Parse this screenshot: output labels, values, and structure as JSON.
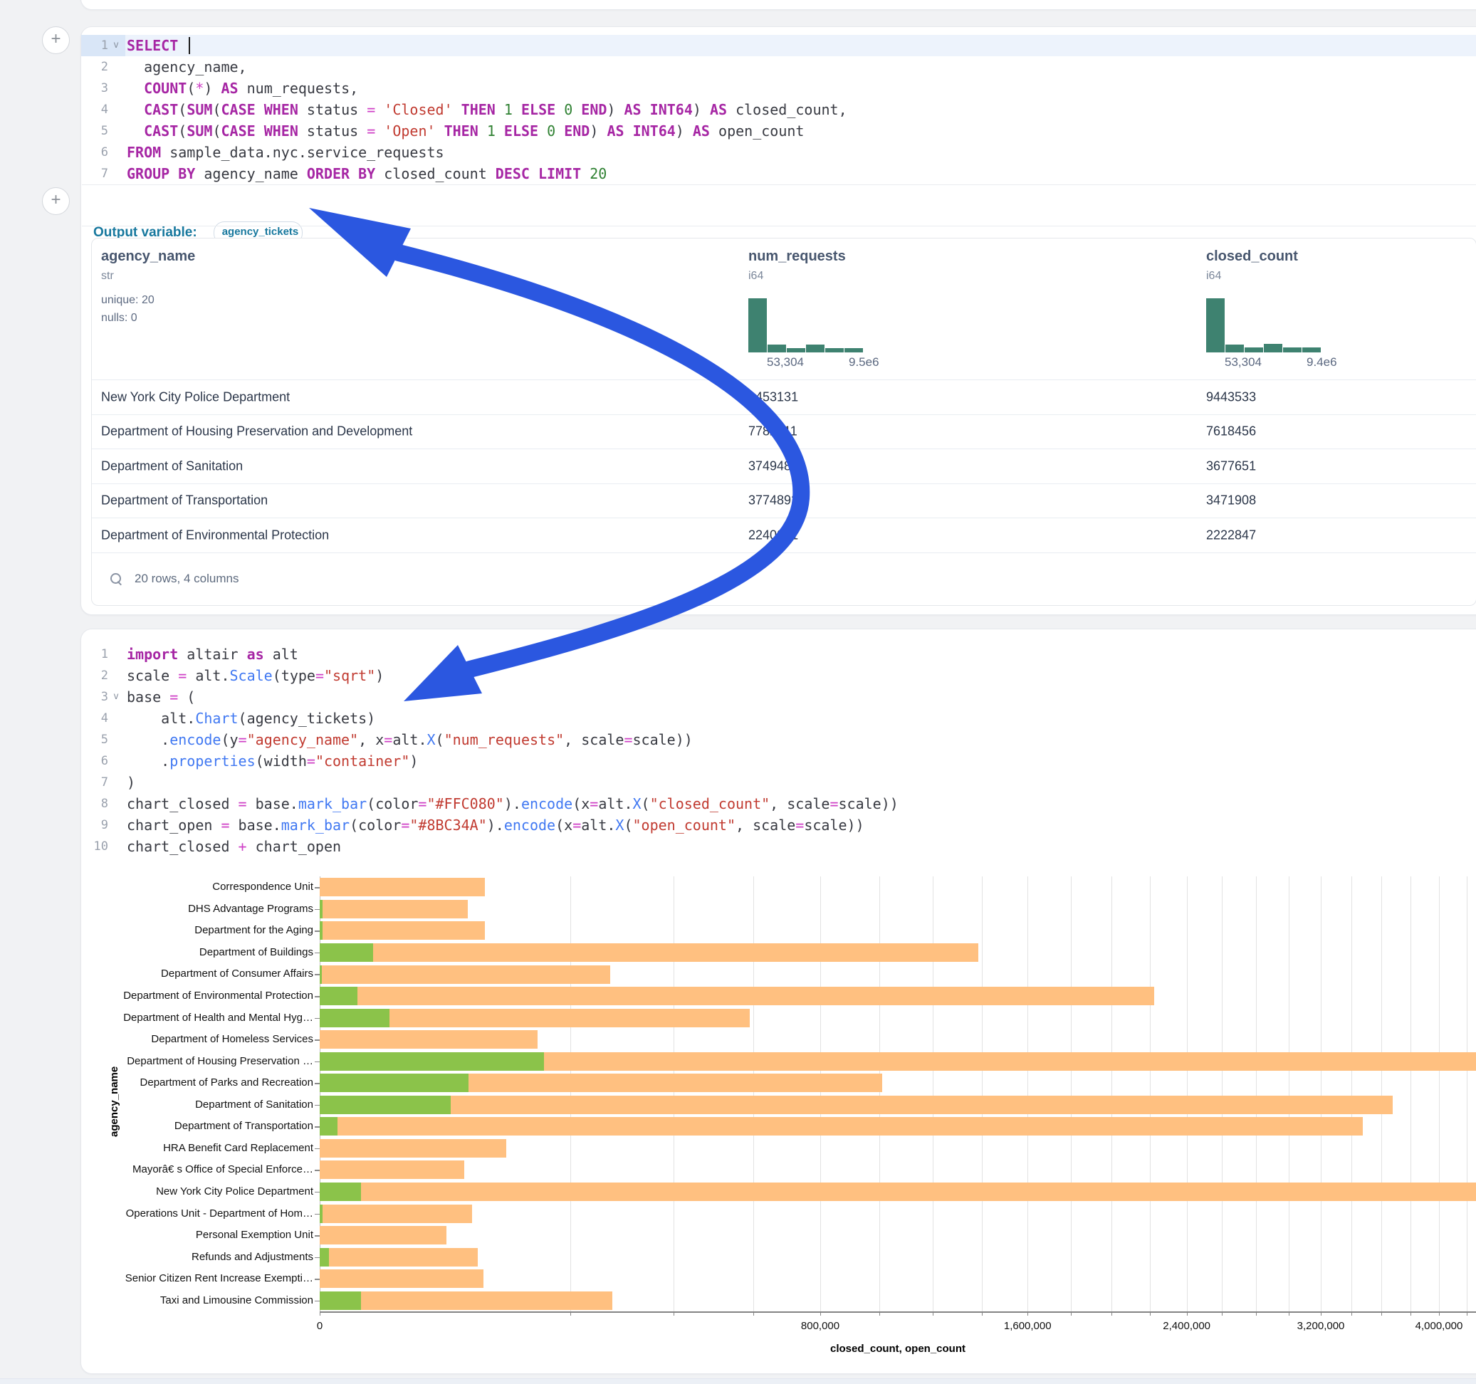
{
  "accent_colors": {
    "keyword": "#A626A4",
    "string": "#C13B31",
    "number": "#2F8132",
    "operator": "#CF3FC6",
    "function": "#4078F2",
    "histogram": "#3E8270",
    "arrow": "#2b57e0",
    "output_label": "#17789e"
  },
  "sql_cell": {
    "lines": [
      {
        "num": "1",
        "fold": true,
        "active": true,
        "cursor": true,
        "tokens": [
          [
            "kw",
            "SELECT"
          ],
          [
            "plain",
            " "
          ]
        ]
      },
      {
        "num": "2",
        "tokens": [
          [
            "plain",
            "  agency_name,"
          ]
        ]
      },
      {
        "num": "3",
        "tokens": [
          [
            "plain",
            "  "
          ],
          [
            "kw",
            "COUNT"
          ],
          [
            "plain",
            "("
          ],
          [
            "op",
            "*"
          ],
          [
            "plain",
            ") "
          ],
          [
            "kw",
            "AS"
          ],
          [
            "plain",
            " num_requests,"
          ]
        ]
      },
      {
        "num": "4",
        "tokens": [
          [
            "plain",
            "  "
          ],
          [
            "kw",
            "CAST"
          ],
          [
            "plain",
            "("
          ],
          [
            "kw",
            "SUM"
          ],
          [
            "plain",
            "("
          ],
          [
            "kw",
            "CASE"
          ],
          [
            "plain",
            " "
          ],
          [
            "kw",
            "WHEN"
          ],
          [
            "plain",
            " status "
          ],
          [
            "op",
            "="
          ],
          [
            "plain",
            " "
          ],
          [
            "str",
            "'Closed'"
          ],
          [
            "plain",
            " "
          ],
          [
            "kw",
            "THEN"
          ],
          [
            "plain",
            " "
          ],
          [
            "num",
            "1"
          ],
          [
            "plain",
            " "
          ],
          [
            "kw",
            "ELSE"
          ],
          [
            "plain",
            " "
          ],
          [
            "num",
            "0"
          ],
          [
            "plain",
            " "
          ],
          [
            "kw",
            "END"
          ],
          [
            "plain",
            ") "
          ],
          [
            "kw",
            "AS"
          ],
          [
            "plain",
            " "
          ],
          [
            "kw",
            "INT64"
          ],
          [
            "plain",
            ") "
          ],
          [
            "kw",
            "AS"
          ],
          [
            "plain",
            " closed_count,"
          ]
        ]
      },
      {
        "num": "5",
        "tokens": [
          [
            "plain",
            "  "
          ],
          [
            "kw",
            "CAST"
          ],
          [
            "plain",
            "("
          ],
          [
            "kw",
            "SUM"
          ],
          [
            "plain",
            "("
          ],
          [
            "kw",
            "CASE"
          ],
          [
            "plain",
            " "
          ],
          [
            "kw",
            "WHEN"
          ],
          [
            "plain",
            " status "
          ],
          [
            "op",
            "="
          ],
          [
            "plain",
            " "
          ],
          [
            "str",
            "'Open'"
          ],
          [
            "plain",
            " "
          ],
          [
            "kw",
            "THEN"
          ],
          [
            "plain",
            " "
          ],
          [
            "num",
            "1"
          ],
          [
            "plain",
            " "
          ],
          [
            "kw",
            "ELSE"
          ],
          [
            "plain",
            " "
          ],
          [
            "num",
            "0"
          ],
          [
            "plain",
            " "
          ],
          [
            "kw",
            "END"
          ],
          [
            "plain",
            ") "
          ],
          [
            "kw",
            "AS"
          ],
          [
            "plain",
            " "
          ],
          [
            "kw",
            "INT64"
          ],
          [
            "plain",
            ") "
          ],
          [
            "kw",
            "AS"
          ],
          [
            "plain",
            " open_count"
          ]
        ]
      },
      {
        "num": "6",
        "tokens": [
          [
            "kw",
            "FROM"
          ],
          [
            "plain",
            " sample_data.nyc.service_requests"
          ]
        ]
      },
      {
        "num": "7",
        "tokens": [
          [
            "kw",
            "GROUP BY"
          ],
          [
            "plain",
            " agency_name "
          ],
          [
            "kw",
            "ORDER BY"
          ],
          [
            "plain",
            " closed_count "
          ],
          [
            "kw",
            "DESC"
          ],
          [
            "plain",
            " "
          ],
          [
            "kw",
            "LIMIT"
          ],
          [
            "plain",
            " "
          ],
          [
            "num",
            "20"
          ]
        ]
      }
    ]
  },
  "output_row": {
    "label": "Output variable:",
    "variable": "agency_tickets"
  },
  "table": {
    "columns": [
      {
        "name": "agency_name",
        "type": "str",
        "stats": [
          "unique: 20",
          "nulls: 0"
        ]
      },
      {
        "name": "num_requests",
        "type": "i64",
        "hist": {
          "bins": [
            100,
            15,
            8,
            15,
            8,
            8
          ],
          "min_label": "53,304",
          "max_label": "9.5e6"
        }
      },
      {
        "name": "closed_count",
        "type": "i64",
        "hist": {
          "bins": [
            100,
            15,
            9,
            16,
            9,
            9
          ],
          "min_label": "53,304",
          "max_label": "9.4e6"
        }
      }
    ],
    "rows": [
      [
        "New York City Police Department",
        "9453131",
        "9443533"
      ],
      [
        "Department of Housing Preservation and Development",
        "7782211",
        "7618456"
      ],
      [
        "Department of Sanitation",
        "3749485",
        "3677651"
      ],
      [
        "Department of Transportation",
        "3774892",
        "3471908"
      ],
      [
        "Department of Environmental Protection",
        "2240041",
        "2222847"
      ]
    ],
    "footer": "20 rows, 4 columns"
  },
  "python_cell": {
    "lines": [
      {
        "num": "1",
        "tokens": [
          [
            "kw",
            "import"
          ],
          [
            "plain",
            " altair "
          ],
          [
            "kw",
            "as"
          ],
          [
            "plain",
            " alt"
          ]
        ]
      },
      {
        "num": "2",
        "tokens": [
          [
            "plain",
            "scale "
          ],
          [
            "op",
            "="
          ],
          [
            "plain",
            " alt."
          ],
          [
            "fn",
            "Scale"
          ],
          [
            "plain",
            "(type"
          ],
          [
            "op",
            "="
          ],
          [
            "str",
            "\"sqrt\""
          ],
          [
            "plain",
            ")"
          ]
        ]
      },
      {
        "num": "3",
        "fold": true,
        "tokens": [
          [
            "plain",
            "base "
          ],
          [
            "op",
            "="
          ],
          [
            "plain",
            " ("
          ]
        ]
      },
      {
        "num": "4",
        "tokens": [
          [
            "plain",
            "    alt."
          ],
          [
            "fn",
            "Chart"
          ],
          [
            "plain",
            "(agency_tickets)"
          ]
        ]
      },
      {
        "num": "5",
        "tokens": [
          [
            "plain",
            "    ."
          ],
          [
            "fn",
            "encode"
          ],
          [
            "plain",
            "(y"
          ],
          [
            "op",
            "="
          ],
          [
            "str",
            "\"agency_name\""
          ],
          [
            "plain",
            ", x"
          ],
          [
            "op",
            "="
          ],
          [
            "plain",
            "alt."
          ],
          [
            "fn",
            "X"
          ],
          [
            "plain",
            "("
          ],
          [
            "str",
            "\"num_requests\""
          ],
          [
            "plain",
            ", scale"
          ],
          [
            "op",
            "="
          ],
          [
            "plain",
            "scale))"
          ]
        ]
      },
      {
        "num": "6",
        "tokens": [
          [
            "plain",
            "    ."
          ],
          [
            "fn",
            "properties"
          ],
          [
            "plain",
            "(width"
          ],
          [
            "op",
            "="
          ],
          [
            "str",
            "\"container\""
          ],
          [
            "plain",
            ")"
          ]
        ]
      },
      {
        "num": "7",
        "tokens": [
          [
            "plain",
            ")"
          ]
        ]
      },
      {
        "num": "8",
        "tokens": [
          [
            "plain",
            "chart_closed "
          ],
          [
            "op",
            "="
          ],
          [
            "plain",
            " base."
          ],
          [
            "fn",
            "mark_bar"
          ],
          [
            "plain",
            "(color"
          ],
          [
            "op",
            "="
          ],
          [
            "str",
            "\"#FFC080\""
          ],
          [
            "plain",
            ")."
          ],
          [
            "fn",
            "encode"
          ],
          [
            "plain",
            "(x"
          ],
          [
            "op",
            "="
          ],
          [
            "plain",
            "alt."
          ],
          [
            "fn",
            "X"
          ],
          [
            "plain",
            "("
          ],
          [
            "str",
            "\"closed_count\""
          ],
          [
            "plain",
            ", scale"
          ],
          [
            "op",
            "="
          ],
          [
            "plain",
            "scale))"
          ]
        ]
      },
      {
        "num": "9",
        "tokens": [
          [
            "plain",
            "chart_open "
          ],
          [
            "op",
            "="
          ],
          [
            "plain",
            " base."
          ],
          [
            "fn",
            "mark_bar"
          ],
          [
            "plain",
            "(color"
          ],
          [
            "op",
            "="
          ],
          [
            "str",
            "\"#8BC34A\""
          ],
          [
            "plain",
            ")."
          ],
          [
            "fn",
            "encode"
          ],
          [
            "plain",
            "(x"
          ],
          [
            "op",
            "="
          ],
          [
            "plain",
            "alt."
          ],
          [
            "fn",
            "X"
          ],
          [
            "plain",
            "("
          ],
          [
            "str",
            "\"open_count\""
          ],
          [
            "plain",
            ", scale"
          ],
          [
            "op",
            "="
          ],
          [
            "plain",
            "scale))"
          ]
        ]
      },
      {
        "num": "10",
        "tokens": [
          [
            "plain",
            "chart_closed "
          ],
          [
            "op",
            "+"
          ],
          [
            "plain",
            " chart_open"
          ]
        ]
      }
    ]
  },
  "chart_data": {
    "type": "bar",
    "orientation": "horizontal",
    "scale_type": "sqrt",
    "xlabel": "closed_count, open_count",
    "ylabel": "agency_name",
    "legend": "none",
    "grid": true,
    "x_tick_labels": [
      0,
      800000,
      1600000,
      2400000,
      3200000,
      4000000
    ],
    "gridline_step": 200000,
    "gridline_max": 4200000,
    "visible_x_max": 4260000,
    "bar_colors": {
      "closed_count": "#FFC080",
      "open_count": "#8BC34A"
    },
    "categories": [
      "Correspondence Unit",
      "DHS Advantage Programs",
      "Department for the Aging",
      "Department of Buildings",
      "Department of Consumer Affairs",
      "Department of Environmental Protection",
      "Department of Health and Mental Hyg…",
      "Department of Homeless Services",
      "Department of Housing Preservation …",
      "Department of Parks and Recreation",
      "Department of Sanitation",
      "Department of Transportation",
      "HRA Benefit Card Replacement",
      "Mayorâ€ s Office of Special Enforce…",
      "New York City Police Department",
      "Operations Unit - Department of Hom…",
      "Personal Exemption Unit",
      "Refunds and Adjustments",
      "Senior Citizen Rent Increase Exempti…",
      "Taxi and Limousine Commission"
    ],
    "series": [
      {
        "name": "closed_count",
        "values": [
          87000,
          70000,
          87000,
          1385000,
          270000,
          2222847,
          590000,
          152000,
          7618456,
          1010000,
          3677651,
          3471908,
          111000,
          67000,
          9443533,
          74000,
          51000,
          80000,
          85600,
          273000
        ]
      },
      {
        "name": "open_count",
        "values": [
          0,
          20,
          25,
          9100,
          15,
          4500,
          15600,
          0,
          161000,
          71000,
          55000,
          1000,
          0,
          0,
          5500,
          20,
          0,
          280,
          0,
          5500
        ]
      }
    ]
  }
}
